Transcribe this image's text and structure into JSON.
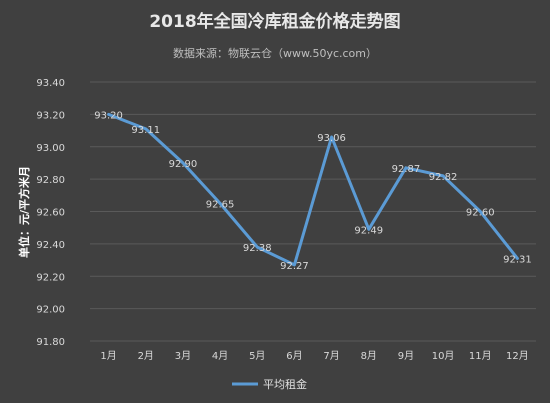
{
  "chart_data": {
    "type": "line",
    "title": "2018年全国冷库租金价格走势图",
    "subtitle": "数据来源：物联云仓（www.50yc.com）",
    "ylabel": "单位：元/平方米月",
    "xlabel": "",
    "categories": [
      "1月",
      "2月",
      "3月",
      "4月",
      "5月",
      "6月",
      "7月",
      "8月",
      "9月",
      "10月",
      "11月",
      "12月"
    ],
    "series": [
      {
        "name": "平均租金",
        "values": [
          93.2,
          93.11,
          92.9,
          92.65,
          92.38,
          92.27,
          93.06,
          92.49,
          92.87,
          92.82,
          92.6,
          92.31
        ],
        "color": "#5b9bd5"
      }
    ],
    "data_labels": [
      "93.20",
      "93.11",
      "92.90",
      "92.65",
      "92.38",
      "92.27",
      "93.06",
      "92.49",
      "92.87",
      "92.82",
      "92.60",
      "92.31"
    ],
    "yticks": [
      "91.80",
      "92.00",
      "92.20",
      "92.40",
      "92.60",
      "92.80",
      "93.00",
      "93.20",
      "93.40"
    ],
    "ylim": [
      91.8,
      93.4
    ],
    "grid": true,
    "legend_position": "bottom",
    "background": "#404040"
  }
}
